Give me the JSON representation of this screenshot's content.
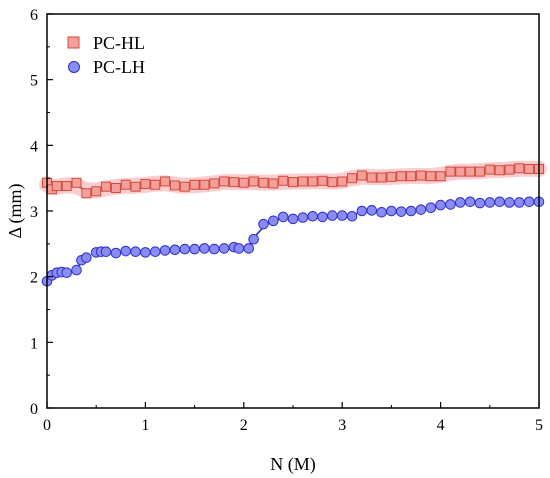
{
  "chart_data": {
    "type": "scatter",
    "xlabel": "N (M)",
    "ylabel": "Δ (mm)",
    "xlim": [
      0,
      5
    ],
    "ylim": [
      0,
      6
    ],
    "xticks": [
      "0",
      "1",
      "2",
      "3",
      "4",
      "5"
    ],
    "yticks": [
      "0",
      "1",
      "2",
      "3",
      "4",
      "5",
      "6"
    ],
    "grid": false,
    "legend_position": "top-left",
    "series": [
      {
        "name": "PC-HL",
        "marker": "square",
        "fill": "#f4a09a",
        "stroke": "#d14a3f",
        "band_color": "#f9c6c8",
        "x": [
          0.0,
          0.05,
          0.1,
          0.2,
          0.3,
          0.4,
          0.5,
          0.6,
          0.7,
          0.8,
          0.9,
          1.0,
          1.1,
          1.2,
          1.3,
          1.4,
          1.5,
          1.6,
          1.7,
          1.8,
          1.9,
          2.0,
          2.1,
          2.2,
          2.3,
          2.4,
          2.5,
          2.6,
          2.7,
          2.8,
          2.9,
          3.0,
          3.1,
          3.2,
          3.3,
          3.4,
          3.5,
          3.6,
          3.7,
          3.8,
          3.9,
          4.0,
          4.1,
          4.2,
          4.3,
          4.4,
          4.5,
          4.6,
          4.7,
          4.8,
          4.9,
          5.0
        ],
        "y": [
          3.43,
          3.33,
          3.38,
          3.38,
          3.43,
          3.27,
          3.3,
          3.37,
          3.35,
          3.4,
          3.37,
          3.41,
          3.4,
          3.45,
          3.39,
          3.37,
          3.4,
          3.4,
          3.42,
          3.45,
          3.44,
          3.43,
          3.45,
          3.43,
          3.42,
          3.46,
          3.44,
          3.45,
          3.45,
          3.46,
          3.44,
          3.45,
          3.5,
          3.54,
          3.51,
          3.51,
          3.52,
          3.53,
          3.53,
          3.54,
          3.53,
          3.53,
          3.6,
          3.6,
          3.6,
          3.6,
          3.63,
          3.62,
          3.63,
          3.65,
          3.64,
          3.64
        ]
      },
      {
        "name": "PC-LH",
        "marker": "circle",
        "fill": "#8a8cf2",
        "stroke": "#2b2fc9",
        "fit_color": "#2b2fc9",
        "x": [
          0.0,
          0.05,
          0.1,
          0.15,
          0.2,
          0.3,
          0.35,
          0.4,
          0.5,
          0.55,
          0.6,
          0.7,
          0.8,
          0.9,
          1.0,
          1.1,
          1.2,
          1.3,
          1.4,
          1.5,
          1.6,
          1.7,
          1.8,
          1.9,
          1.95,
          2.05,
          2.1,
          2.2,
          2.3,
          2.4,
          2.5,
          2.6,
          2.7,
          2.8,
          2.9,
          3.0,
          3.1,
          3.2,
          3.3,
          3.4,
          3.5,
          3.6,
          3.7,
          3.8,
          3.9,
          4.0,
          4.1,
          4.2,
          4.3,
          4.4,
          4.5,
          4.6,
          4.7,
          4.8,
          4.9,
          5.0
        ],
        "y": [
          1.93,
          2.02,
          2.06,
          2.07,
          2.06,
          2.1,
          2.25,
          2.29,
          2.37,
          2.38,
          2.38,
          2.36,
          2.39,
          2.38,
          2.37,
          2.38,
          2.4,
          2.41,
          2.42,
          2.42,
          2.43,
          2.42,
          2.43,
          2.45,
          2.43,
          2.43,
          2.57,
          2.8,
          2.85,
          2.91,
          2.88,
          2.9,
          2.92,
          2.91,
          2.93,
          2.93,
          2.92,
          3.0,
          3.01,
          2.98,
          3.0,
          2.99,
          3.0,
          3.02,
          3.05,
          3.09,
          3.1,
          3.13,
          3.14,
          3.12,
          3.13,
          3.14,
          3.13,
          3.13,
          3.14,
          3.14
        ]
      }
    ]
  }
}
